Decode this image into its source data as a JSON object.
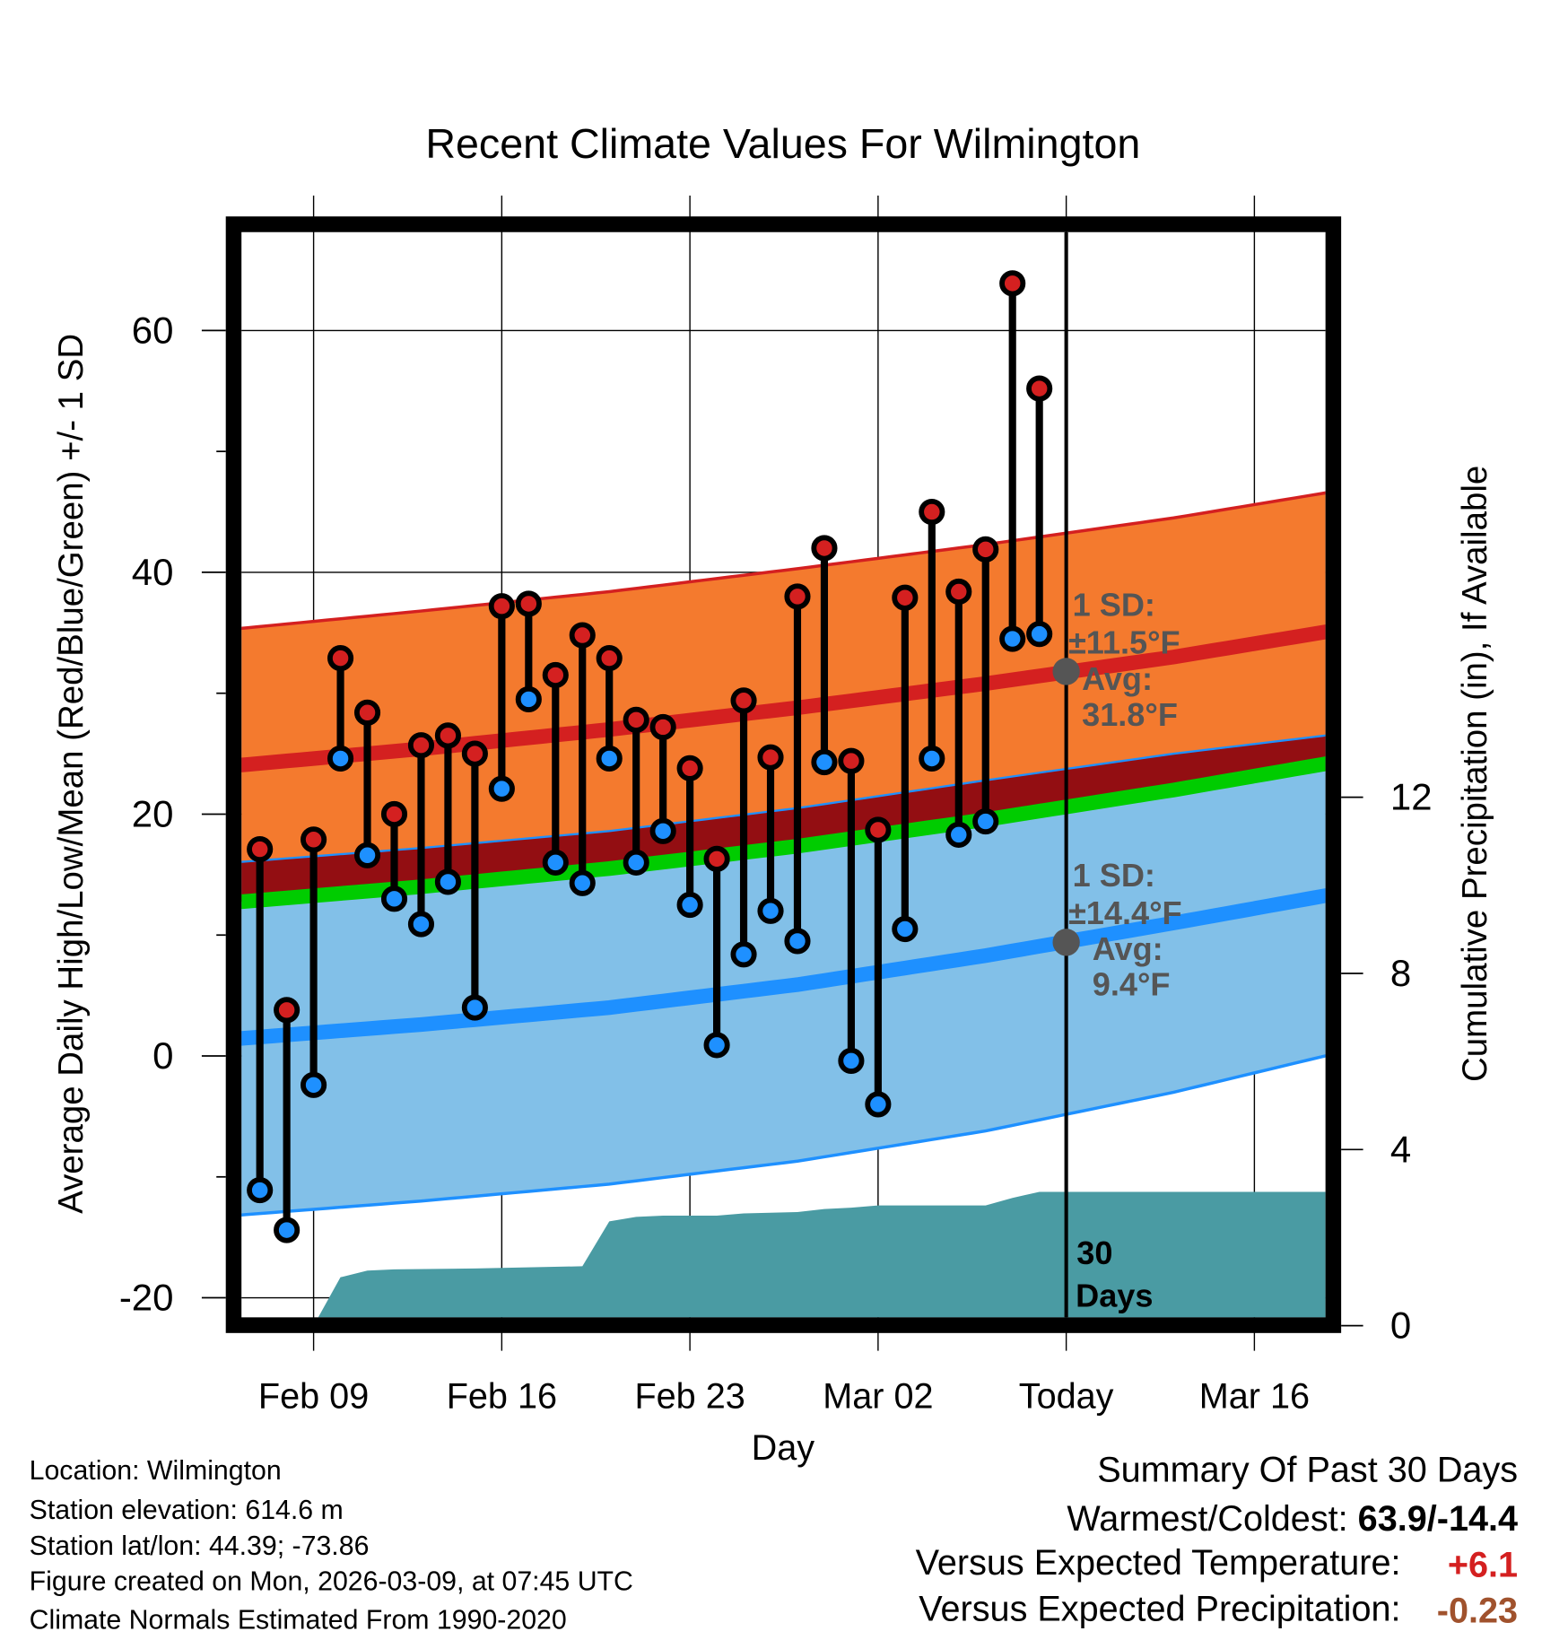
{
  "chart_data": {
    "type": "line",
    "title": "Recent Climate Values For Wilmington",
    "xlabel": "Day",
    "ylabel": "Average Daily High/Low/Mean (Red/Blue/Green) +/- 1 SD",
    "y2label": "Cumulative Precipitation (in), If Available",
    "ylim": [
      -21.6,
      68.1
    ],
    "y2lim": [
      0,
      22
    ],
    "grid": true,
    "x_ticks": [
      "Feb 09",
      "Feb 16",
      "Feb 23",
      "Mar 02",
      "Today",
      "Mar 16"
    ],
    "y_ticks": [
      60,
      40,
      20,
      0,
      -20
    ],
    "y2_ticks": [
      12,
      8,
      4,
      0
    ],
    "colors": {
      "high_band": "#f47a2e",
      "overlap": "#930e12",
      "low_band": "#82c0e8",
      "high_line": "#d42020",
      "low_line": "#1e90ff",
      "mean_line": "#00cc00",
      "precip": "#4a9ba3",
      "high_marker": "#d42020",
      "low_marker": "#1e90ff"
    },
    "daily": [
      {
        "date": "Feb 07",
        "high": 17.1,
        "low": -11.1
      },
      {
        "date": "Feb 08",
        "high": 3.8,
        "low": -14.4
      },
      {
        "date": "Feb 09",
        "high": 17.9,
        "low": -2.4
      },
      {
        "date": "Feb 10",
        "high": 32.9,
        "low": 24.6
      },
      {
        "date": "Feb 11",
        "high": 28.4,
        "low": 16.6
      },
      {
        "date": "Feb 12",
        "high": 20.0,
        "low": 13.0
      },
      {
        "date": "Feb 13",
        "high": 25.7,
        "low": 10.9
      },
      {
        "date": "Feb 14",
        "high": 26.5,
        "low": 14.4
      },
      {
        "date": "Feb 15",
        "high": 25.0,
        "low": 4.0
      },
      {
        "date": "Feb 16",
        "high": 37.2,
        "low": 22.1
      },
      {
        "date": "Feb 17",
        "high": 37.4,
        "low": 29.5
      },
      {
        "date": "Feb 18",
        "high": 31.5,
        "low": 16.0
      },
      {
        "date": "Feb 19",
        "high": 34.8,
        "low": 14.3
      },
      {
        "date": "Feb 20",
        "high": 32.9,
        "low": 24.6
      },
      {
        "date": "Feb 21",
        "high": 27.8,
        "low": 16.0
      },
      {
        "date": "Feb 22",
        "high": 27.2,
        "low": 18.6
      },
      {
        "date": "Feb 23",
        "high": 23.8,
        "low": 12.5
      },
      {
        "date": "Feb 24",
        "high": 16.3,
        "low": 0.9
      },
      {
        "date": "Feb 25",
        "high": 29.4,
        "low": 8.4
      },
      {
        "date": "Feb 26",
        "high": 24.7,
        "low": 12.0
      },
      {
        "date": "Feb 27",
        "high": 38.0,
        "low": 9.5
      },
      {
        "date": "Feb 28",
        "high": 42.0,
        "low": 24.3
      },
      {
        "date": "Mar 01",
        "high": 24.4,
        "low": -0.4
      },
      {
        "date": "Mar 02",
        "high": 18.7,
        "low": -4.0
      },
      {
        "date": "Mar 03",
        "high": 37.9,
        "low": 10.5
      },
      {
        "date": "Mar 04",
        "high": 45.0,
        "low": 24.6
      },
      {
        "date": "Mar 05",
        "high": 38.4,
        "low": 18.3
      },
      {
        "date": "Mar 06",
        "high": 41.9,
        "low": 19.4
      },
      {
        "date": "Mar 07",
        "high": 63.9,
        "low": 34.5
      },
      {
        "date": "Mar 08",
        "high": 55.2,
        "low": 34.9
      }
    ],
    "normals": [
      {
        "date": "Feb 06",
        "high_mean": 24.0,
        "high_sd": 11.3,
        "low_mean": 1.4,
        "low_sd": 14.6
      },
      {
        "date": "Feb 13",
        "high_mean": 25.4,
        "high_sd": 11.4,
        "low_mean": 2.6,
        "low_sd": 14.6
      },
      {
        "date": "Feb 20",
        "high_mean": 27.0,
        "high_sd": 11.4,
        "low_mean": 4.0,
        "low_sd": 14.6
      },
      {
        "date": "Feb 27",
        "high_mean": 28.8,
        "high_sd": 11.5,
        "low_mean": 5.9,
        "low_sd": 14.6
      },
      {
        "date": "Mar 06",
        "high_mean": 30.8,
        "high_sd": 11.5,
        "low_mean": 8.3,
        "low_sd": 14.5
      },
      {
        "date": "Mar 13",
        "high_mean": 33.0,
        "high_sd": 11.5,
        "low_mean": 11.0,
        "low_sd": 14.0
      },
      {
        "date": "Mar 19",
        "high_mean": 35.2,
        "high_sd": 11.5,
        "low_mean": 13.4,
        "low_sd": 13.2
      }
    ],
    "precip_cumulative": [
      {
        "date": "Feb 09",
        "value": 0
      },
      {
        "date": "Feb 10",
        "value": 1.1
      },
      {
        "date": "Feb 11",
        "value": 1.25
      },
      {
        "date": "Feb 12",
        "value": 1.28
      },
      {
        "date": "Feb 15",
        "value": 1.3
      },
      {
        "date": "Feb 19",
        "value": 1.35
      },
      {
        "date": "Feb 20",
        "value": 2.37
      },
      {
        "date": "Feb 21",
        "value": 2.47
      },
      {
        "date": "Feb 22",
        "value": 2.5
      },
      {
        "date": "Feb 24",
        "value": 2.5
      },
      {
        "date": "Feb 25",
        "value": 2.55
      },
      {
        "date": "Feb 27",
        "value": 2.58
      },
      {
        "date": "Feb 28",
        "value": 2.65
      },
      {
        "date": "Mar 01",
        "value": 2.68
      },
      {
        "date": "Mar 02",
        "value": 2.73
      },
      {
        "date": "Mar 06",
        "value": 2.73
      },
      {
        "date": "Mar 07",
        "value": 2.9
      },
      {
        "date": "Mar 08",
        "value": 3.04
      },
      {
        "date": "Mar 19",
        "value": 3.04
      }
    ],
    "annotations": {
      "high_sd_label": "1 SD:",
      "high_sd_value": "±11.5°F",
      "high_avg_label": "Avg:",
      "high_avg_value": "31.8°F",
      "low_sd_label": "1 SD:",
      "low_sd_value": "±14.4°F",
      "low_avg_label": "Avg:",
      "low_avg_value": "9.4°F",
      "window_count": "30",
      "window_unit": "Days",
      "high_avg": 31.8,
      "low_avg": 9.4
    }
  },
  "info": {
    "location": "Location: Wilmington",
    "elevation": "Station elevation: 614.6 m",
    "latlon": "Station lat/lon: 44.39; -73.86",
    "created": "Figure created on Mon, 2026-03-09, at 07:45 UTC",
    "normals": "Climate Normals Estimated From 1990-2020"
  },
  "summary": {
    "title": "Summary Of Past 30 Days",
    "warm_cold_label": "Warmest/Coldest: ",
    "warm_cold_value": "63.9/-14.4",
    "temp_label": "Versus Expected Temperature:",
    "temp_value": "+6.1",
    "precip_label": "Versus Expected Precipitation:",
    "precip_value": "-0.23"
  }
}
